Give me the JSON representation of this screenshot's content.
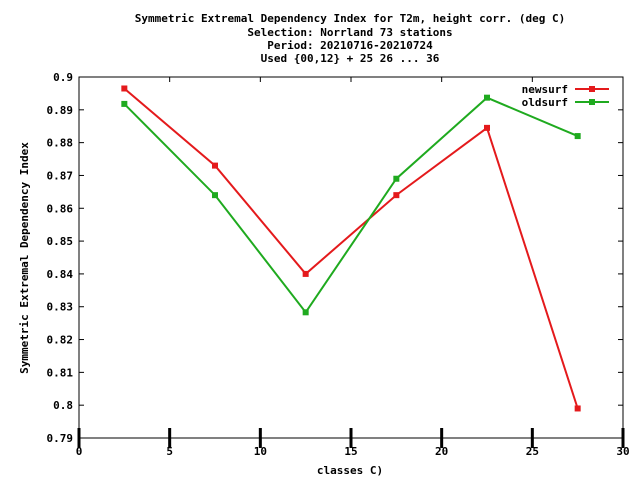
{
  "chart_data": {
    "type": "line",
    "title_lines": [
      "Symmetric Extremal Dependency Index  for T2m, height corr. (deg C)",
      "Selection: Norrland     73 stations",
      "Period: 20210716-20210724",
      "Used {00,12} + 25 26 ... 36"
    ],
    "xlabel": "classes C)",
    "ylabel": "Symmetric Extremal Dependency Index",
    "xlim": [
      0,
      30
    ],
    "ylim": [
      0.79,
      0.9
    ],
    "xticks": [
      0,
      5,
      10,
      15,
      20,
      25,
      30
    ],
    "yticks": [
      0.79,
      0.8,
      0.81,
      0.82,
      0.83,
      0.84,
      0.85,
      0.86,
      0.87,
      0.88,
      0.89,
      0.9
    ],
    "ytick_labels": [
      "0.79",
      "0.8",
      "0.81",
      "0.82",
      "0.83",
      "0.84",
      "0.85",
      "0.86",
      "0.87",
      "0.88",
      "0.89",
      "0.9"
    ],
    "grid": false,
    "legend_position": "top-right",
    "x": [
      2.5,
      7.5,
      12.5,
      17.5,
      22.5,
      27.5
    ],
    "series": [
      {
        "name": "newsurf",
        "color": "#e41a1c",
        "values": [
          0.8965,
          0.873,
          0.84,
          0.864,
          0.8845,
          0.799
        ]
      },
      {
        "name": "oldsurf",
        "color": "#1faa1f",
        "values": [
          0.8918,
          0.864,
          0.8283,
          0.869,
          0.8937,
          0.882
        ]
      }
    ]
  }
}
